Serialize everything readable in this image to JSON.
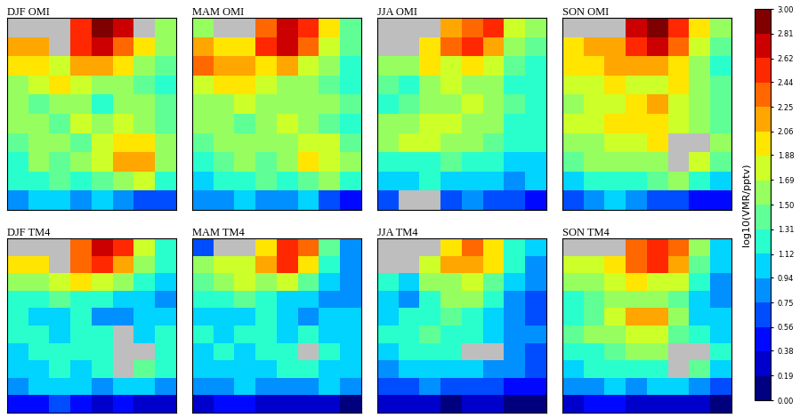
{
  "chart_data": [
    {
      "type": "heatmap",
      "title": "DJF OMI",
      "tick_labels": false,
      "cells": [
        [
          null,
          null,
          null,
          2.6,
          2.9,
          2.7,
          null,
          1.6
        ],
        [
          2.2,
          2.1,
          null,
          2.5,
          2.8,
          2.4,
          1.9,
          1.5
        ],
        [
          1.9,
          2.0,
          1.8,
          2.1,
          2.2,
          1.9,
          1.6,
          1.4
        ],
        [
          1.6,
          1.7,
          1.9,
          1.7,
          1.5,
          1.6,
          1.4,
          1.3
        ],
        [
          1.5,
          1.4,
          1.5,
          1.6,
          1.3,
          1.5,
          1.6,
          1.4
        ],
        [
          1.6,
          1.5,
          1.4,
          1.7,
          1.6,
          1.8,
          1.5,
          1.4
        ],
        [
          1.4,
          1.6,
          1.5,
          1.4,
          1.8,
          2.0,
          1.9,
          1.5
        ],
        [
          1.3,
          1.5,
          1.4,
          1.5,
          1.7,
          2.1,
          2.2,
          1.6
        ],
        [
          1.2,
          1.3,
          1.4,
          1.3,
          1.4,
          1.5,
          1.8,
          1.3
        ],
        [
          0.9,
          1.0,
          1.1,
          0.8,
          1.0,
          0.9,
          0.7,
          0.6
        ]
      ]
    },
    {
      "type": "heatmap",
      "title": "MAM OMI",
      "tick_labels": false,
      "cells": [
        [
          1.5,
          null,
          null,
          2.3,
          2.7,
          2.5,
          1.9,
          1.4
        ],
        [
          2.1,
          2.0,
          1.9,
          2.6,
          2.8,
          2.3,
          1.7,
          1.4
        ],
        [
          2.3,
          2.1,
          2.2,
          2.0,
          2.1,
          1.8,
          1.5,
          1.3
        ],
        [
          1.8,
          1.9,
          2.0,
          1.8,
          1.6,
          1.5,
          1.4,
          1.3
        ],
        [
          1.5,
          1.6,
          1.7,
          1.6,
          1.5,
          1.6,
          1.5,
          1.4
        ],
        [
          1.6,
          1.5,
          1.4,
          1.6,
          1.7,
          1.6,
          1.4,
          1.3
        ],
        [
          1.4,
          1.5,
          1.6,
          1.5,
          1.6,
          1.8,
          1.7,
          1.4
        ],
        [
          1.3,
          1.4,
          1.5,
          1.4,
          1.6,
          1.9,
          1.8,
          1.5
        ],
        [
          1.1,
          1.2,
          1.3,
          1.4,
          1.3,
          1.4,
          1.5,
          1.2
        ],
        [
          0.8,
          0.9,
          1.0,
          0.9,
          0.8,
          1.0,
          0.7,
          0.5
        ]
      ]
    },
    {
      "type": "heatmap",
      "title": "JJA OMI",
      "tick_labels": false,
      "cells": [
        [
          null,
          null,
          null,
          2.1,
          2.4,
          2.6,
          1.7,
          1.5
        ],
        [
          null,
          null,
          2.0,
          2.3,
          2.5,
          2.2,
          1.6,
          1.4
        ],
        [
          1.6,
          1.5,
          1.9,
          1.8,
          2.0,
          1.7,
          1.4,
          1.3
        ],
        [
          1.4,
          1.3,
          1.6,
          1.7,
          1.5,
          1.6,
          1.3,
          1.2
        ],
        [
          1.3,
          1.4,
          1.5,
          1.6,
          1.7,
          1.5,
          1.4,
          1.3
        ],
        [
          1.5,
          1.6,
          1.7,
          1.8,
          1.6,
          1.5,
          1.3,
          1.2
        ],
        [
          1.6,
          1.7,
          1.8,
          1.6,
          1.5,
          1.4,
          1.3,
          1.2
        ],
        [
          1.3,
          1.2,
          1.3,
          1.4,
          1.3,
          1.2,
          1.1,
          1.0
        ],
        [
          1.0,
          1.1,
          1.2,
          1.1,
          1.0,
          1.1,
          0.9,
          1.0
        ],
        [
          0.7,
          null,
          null,
          0.6,
          0.8,
          0.7,
          0.6,
          0.5
        ]
      ]
    },
    {
      "type": "heatmap",
      "title": "SON OMI",
      "tick_labels": false,
      "cells": [
        [
          null,
          null,
          null,
          2.7,
          3.0,
          2.6,
          1.9,
          1.5
        ],
        [
          2.0,
          2.1,
          2.2,
          2.5,
          2.8,
          2.3,
          1.7,
          1.4
        ],
        [
          2.0,
          1.9,
          2.1,
          2.2,
          2.2,
          1.9,
          1.5,
          1.3
        ],
        [
          1.7,
          1.8,
          1.9,
          1.8,
          1.7,
          2.0,
          1.5,
          1.4
        ],
        [
          1.6,
          1.7,
          1.8,
          1.9,
          2.1,
          1.8,
          1.6,
          1.4
        ],
        [
          1.7,
          1.8,
          1.9,
          2.0,
          1.9,
          1.7,
          1.5,
          1.4
        ],
        [
          1.5,
          1.6,
          1.7,
          1.8,
          1.9,
          null,
          null,
          1.5
        ],
        [
          1.4,
          1.5,
          1.6,
          1.5,
          1.6,
          null,
          1.7,
          1.4
        ],
        [
          1.1,
          1.2,
          1.3,
          1.2,
          1.4,
          1.6,
          1.3,
          1.1
        ],
        [
          0.7,
          0.9,
          1.0,
          0.8,
          0.6,
          0.7,
          0.5,
          0.4
        ]
      ]
    },
    {
      "type": "heatmap",
      "title": "DJF TM4",
      "tick_labels": false,
      "cells": [
        [
          null,
          null,
          null,
          2.4,
          2.7,
          2.6,
          1.8,
          1.3
        ],
        [
          1.9,
          2.0,
          null,
          2.3,
          2.5,
          2.2,
          1.6,
          1.2
        ],
        [
          1.5,
          1.6,
          1.8,
          1.9,
          1.8,
          1.6,
          1.3,
          1.1
        ],
        [
          1.3,
          1.2,
          1.4,
          1.3,
          1.2,
          1.1,
          1.0,
          0.9
        ],
        [
          1.2,
          1.1,
          1.0,
          1.2,
          0.9,
          0.8,
          1.0,
          1.1
        ],
        [
          1.3,
          1.2,
          1.1,
          1.3,
          1.2,
          null,
          1.1,
          1.2
        ],
        [
          1.1,
          1.2,
          1.3,
          1.2,
          1.3,
          null,
          null,
          1.3
        ],
        [
          1.0,
          1.1,
          1.2,
          1.1,
          1.2,
          null,
          1.4,
          1.2
        ],
        [
          0.9,
          1.0,
          1.1,
          1.0,
          0.9,
          1.0,
          1.1,
          0.9
        ],
        [
          0.4,
          0.5,
          0.6,
          0.4,
          0.3,
          0.4,
          0.3,
          0.2
        ]
      ]
    },
    {
      "type": "heatmap",
      "title": "MAM TM4",
      "tick_labels": false,
      "cells": [
        [
          0.7,
          null,
          null,
          2.0,
          2.5,
          2.3,
          1.4,
          0.9
        ],
        [
          1.6,
          1.7,
          1.8,
          2.2,
          2.6,
          2.0,
          1.3,
          0.9
        ],
        [
          1.4,
          1.5,
          1.7,
          1.6,
          1.7,
          1.4,
          1.1,
          0.9
        ],
        [
          1.2,
          1.3,
          1.4,
          1.3,
          1.1,
          1.0,
          0.9,
          0.8
        ],
        [
          1.1,
          1.0,
          1.1,
          1.2,
          1.0,
          0.9,
          1.0,
          1.0
        ],
        [
          1.2,
          1.1,
          1.2,
          1.3,
          1.1,
          1.2,
          1.0,
          1.1
        ],
        [
          1.1,
          1.2,
          1.1,
          1.2,
          1.3,
          null,
          1.2,
          1.1
        ],
        [
          1.0,
          1.1,
          1.0,
          1.1,
          1.2,
          1.3,
          1.1,
          1.0
        ],
        [
          0.8,
          0.9,
          1.0,
          0.9,
          0.8,
          0.9,
          1.0,
          0.8
        ],
        [
          0.3,
          0.4,
          0.5,
          0.3,
          0.2,
          0.3,
          0.2,
          0.1
        ]
      ]
    },
    {
      "type": "heatmap",
      "title": "JJA TM4",
      "tick_labels": false,
      "cells": [
        [
          null,
          null,
          null,
          2.0,
          2.3,
          2.0,
          1.3,
          1.0
        ],
        [
          null,
          null,
          1.7,
          2.1,
          2.2,
          1.9,
          1.2,
          0.9
        ],
        [
          1.2,
          1.1,
          1.5,
          1.6,
          1.7,
          1.4,
          1.0,
          0.8
        ],
        [
          1.0,
          0.9,
          1.3,
          1.5,
          1.6,
          1.2,
          0.8,
          0.6
        ],
        [
          1.1,
          1.2,
          1.3,
          1.4,
          1.2,
          1.0,
          0.9,
          0.7
        ],
        [
          1.2,
          1.3,
          1.4,
          1.3,
          1.2,
          1.1,
          0.9,
          0.8
        ],
        [
          1.1,
          1.2,
          1.3,
          1.2,
          null,
          null,
          0.8,
          0.7
        ],
        [
          0.9,
          1.0,
          1.1,
          1.0,
          1.1,
          0.9,
          0.8,
          0.6
        ],
        [
          0.6,
          0.7,
          0.8,
          0.7,
          0.6,
          0.7,
          0.5,
          0.4
        ],
        [
          0.2,
          0.3,
          0.2,
          0.1,
          0.2,
          0.3,
          0.1,
          0.1
        ]
      ]
    },
    {
      "type": "heatmap",
      "title": "SON TM4",
      "tick_labels": false,
      "cells": [
        [
          null,
          null,
          null,
          2.4,
          2.6,
          2.3,
          1.5,
          1.0
        ],
        [
          1.7,
          1.8,
          2.0,
          2.3,
          2.5,
          2.1,
          1.4,
          1.0
        ],
        [
          1.5,
          1.6,
          1.8,
          1.9,
          1.8,
          1.7,
          1.2,
          0.9
        ],
        [
          1.3,
          1.4,
          1.6,
          1.5,
          1.6,
          1.4,
          1.1,
          0.9
        ],
        [
          1.3,
          1.4,
          1.7,
          2.1,
          2.2,
          1.6,
          1.1,
          1.0
        ],
        [
          1.4,
          1.5,
          1.6,
          1.8,
          1.7,
          1.4,
          1.2,
          1.1
        ],
        [
          1.2,
          1.3,
          1.4,
          1.5,
          1.6,
          null,
          null,
          1.2
        ],
        [
          1.1,
          1.2,
          1.3,
          1.2,
          1.3,
          null,
          1.4,
          1.1
        ],
        [
          0.8,
          0.9,
          1.0,
          0.9,
          1.0,
          1.1,
          0.9,
          0.7
        ],
        [
          0.3,
          0.4,
          0.5,
          0.3,
          0.2,
          0.3,
          0.2,
          0.1
        ]
      ]
    }
  ],
  "colorbar": {
    "label": "log10(VMR/pptv)",
    "range": [
      0,
      3
    ],
    "ticks": [
      {
        "value": 0,
        "label": "0.00"
      },
      {
        "value": 0.19,
        "label": "0.19"
      },
      {
        "value": 0.38,
        "label": "0.38"
      },
      {
        "value": 0.56,
        "label": "0.56"
      },
      {
        "value": 0.75,
        "label": "0.75"
      },
      {
        "value": 0.94,
        "label": "0.94"
      },
      {
        "value": 1.12,
        "label": "1.12"
      },
      {
        "value": 1.31,
        "label": "1.31"
      },
      {
        "value": 1.5,
        "label": "1.50"
      },
      {
        "value": 1.69,
        "label": "1.69"
      },
      {
        "value": 1.88,
        "label": "1.88"
      },
      {
        "value": 2.06,
        "label": "2.06"
      },
      {
        "value": 2.25,
        "label": "2.25"
      },
      {
        "value": 2.44,
        "label": "2.44"
      },
      {
        "value": 2.62,
        "label": "2.62"
      },
      {
        "value": 2.81,
        "label": "2.81"
      },
      {
        "value": 3,
        "label": "3.00"
      }
    ]
  }
}
